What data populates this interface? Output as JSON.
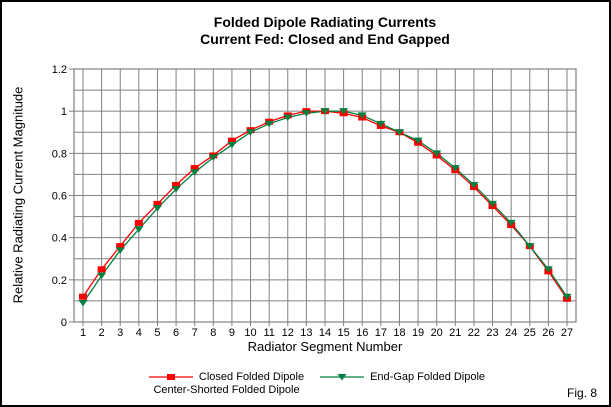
{
  "figure": {
    "caption": "Fig. 8"
  },
  "chart_data": {
    "type": "line",
    "title_line1": "Folded Dipole Radiating Currents",
    "title_line2": "Current Fed: Closed and End Gapped",
    "xlabel": "Radiator Segment Number",
    "ylabel": "Relative Radiating Current Magnitude",
    "categories": [
      1,
      2,
      3,
      4,
      5,
      6,
      7,
      8,
      9,
      10,
      11,
      12,
      13,
      14,
      15,
      16,
      17,
      18,
      19,
      20,
      21,
      22,
      23,
      24,
      25,
      26,
      27
    ],
    "series": [
      {
        "name": "Closed Folded Dipole Center-Shorted Folded Dipole",
        "color": "#ff0000",
        "marker": "square",
        "values": [
          0.12,
          0.25,
          0.36,
          0.47,
          0.56,
          0.65,
          0.73,
          0.79,
          0.86,
          0.91,
          0.95,
          0.98,
          1.0,
          1.0,
          0.99,
          0.97,
          0.93,
          0.9,
          0.85,
          0.79,
          0.72,
          0.64,
          0.55,
          0.46,
          0.36,
          0.24,
          0.11
        ]
      },
      {
        "name": "End-Gap Folded Dipole",
        "color": "#008040",
        "marker": "triangle-down",
        "values": [
          0.09,
          0.22,
          0.34,
          0.44,
          0.54,
          0.63,
          0.71,
          0.78,
          0.84,
          0.9,
          0.94,
          0.97,
          0.99,
          1.0,
          1.0,
          0.98,
          0.94,
          0.9,
          0.86,
          0.8,
          0.73,
          0.65,
          0.56,
          0.47,
          0.36,
          0.25,
          0.12
        ]
      }
    ],
    "ylim": [
      0,
      1.2
    ],
    "y_tick_step": 0.2,
    "y_minor_grid_step": 0.1,
    "y_tick_labels": [
      "0",
      "0.2",
      "0.4",
      "0.6",
      "0.8",
      "1",
      "1.2"
    ],
    "grid": true,
    "grid_color": "#808080",
    "axis_color": "#808080",
    "legend_position": "bottom"
  },
  "legend": {
    "items": [
      {
        "label": "Closed Folded Dipole",
        "label2": "Center-Shorted Folded Dipole",
        "color": "#ff0000",
        "marker": "square"
      },
      {
        "label": "End-Gap Folded Dipole",
        "label2": "",
        "color": "#008040",
        "marker": "triangle-down"
      }
    ]
  }
}
